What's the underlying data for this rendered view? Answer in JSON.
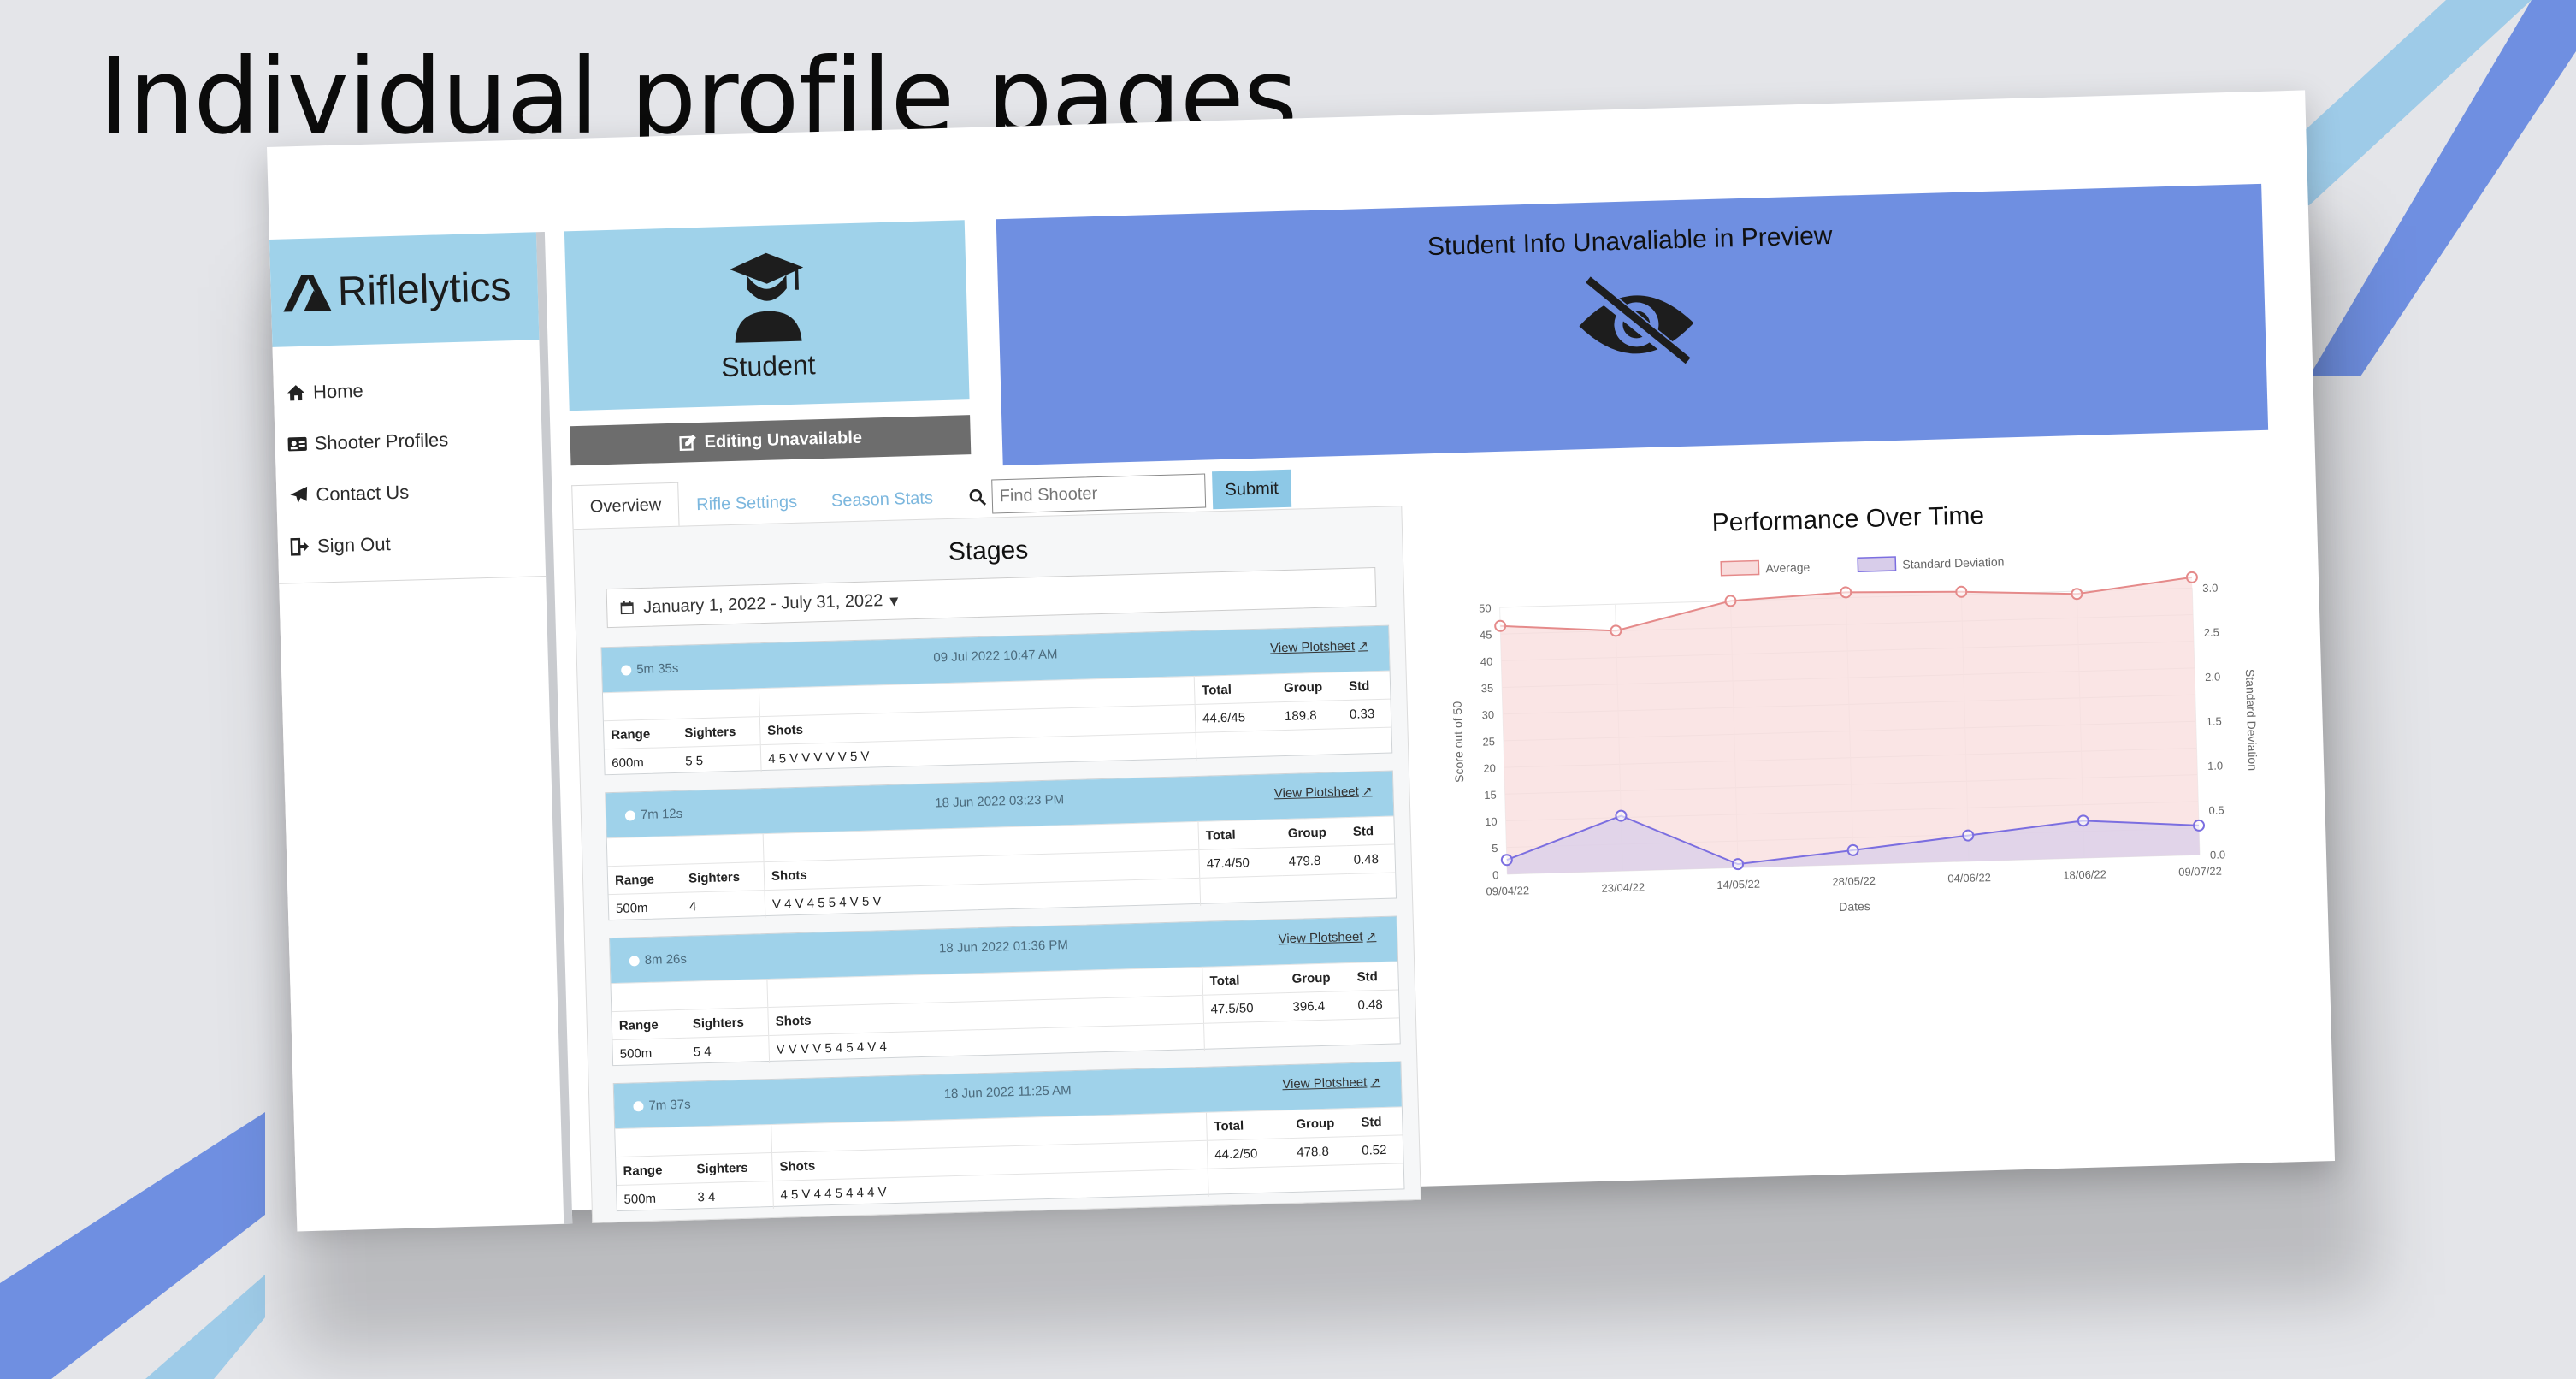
{
  "slide": {
    "title": "Individual profile pages"
  },
  "brand": {
    "name": "Riflelytics"
  },
  "nav": [
    {
      "label": "Home",
      "icon": "home-icon"
    },
    {
      "label": "Shooter Profiles",
      "icon": "id-card-icon"
    },
    {
      "label": "Contact Us",
      "icon": "paper-plane-icon"
    },
    {
      "label": "Sign Out",
      "icon": "sign-out-icon"
    }
  ],
  "student": {
    "label": "Student",
    "edit_label": "Editing Unavailable"
  },
  "info": {
    "title": "Student Info Unavaliable in Preview"
  },
  "tabs": [
    {
      "label": "Overview",
      "active": true
    },
    {
      "label": "Rifle Settings",
      "active": false
    },
    {
      "label": "Season Stats",
      "active": false
    }
  ],
  "search": {
    "placeholder": "Find Shooter",
    "submit_label": "Submit"
  },
  "stages": {
    "title": "Stages",
    "date_range": "January 1, 2022 - July 31, 2022",
    "headers": {
      "range": "Range",
      "sighters": "Sighters",
      "shots": "Shots",
      "total": "Total",
      "group": "Group",
      "std": "Std"
    },
    "link_label": "View Plotsheet",
    "items": [
      {
        "duration": "5m 35s",
        "date": "09 Jul 2022 10:47 AM",
        "range": "600m",
        "sighters": "5 5",
        "shots": "4 5 V V V V V 5 V",
        "total": "44.6/45",
        "group": "189.8",
        "std": "0.33"
      },
      {
        "duration": "7m 12s",
        "date": "18 Jun 2022 03:23 PM",
        "range": "500m",
        "sighters": "4",
        "shots": "V 4 V 4 5 5 4 V 5 V",
        "total": "47.4/50",
        "group": "479.8",
        "std": "0.48"
      },
      {
        "duration": "8m 26s",
        "date": "18 Jun 2022 01:36 PM",
        "range": "500m",
        "sighters": "5 4",
        "shots": "V V V V 5 4 5 4 V 4",
        "total": "47.5/50",
        "group": "396.4",
        "std": "0.48"
      },
      {
        "duration": "7m 37s",
        "date": "18 Jun 2022 11:25 AM",
        "range": "500m",
        "sighters": "3 4",
        "shots": "4 5 V 4 4 5 4 4 4 V",
        "total": "44.2/50",
        "group": "478.8",
        "std": "0.52"
      }
    ]
  },
  "chart_data": {
    "type": "line",
    "title": "Performance Over Time",
    "x": [
      "09/04/22",
      "23/04/22",
      "14/05/22",
      "28/05/22",
      "04/06/22",
      "18/06/22",
      "09/07/22"
    ],
    "xlabel": "Dates",
    "ylabel": "Score out of 50",
    "y2label": "Standard Deviation",
    "ylim": [
      0,
      50
    ],
    "y2lim": [
      0,
      3
    ],
    "yticks": [
      0,
      5,
      10,
      15,
      20,
      25,
      30,
      35,
      40,
      45,
      50
    ],
    "y2ticks": [
      0,
      0.5,
      1.0,
      1.5,
      2.0,
      2.5,
      3.0
    ],
    "series": [
      {
        "name": "Average",
        "axis": "left",
        "values": [
          46.5,
          45.0,
          50.0,
          51.0,
          50.5,
          49.5,
          52.0
        ],
        "color": "#e58a8a",
        "fill": "#f8dcdc"
      },
      {
        "name": "Standard Deviation",
        "axis": "right",
        "values": [
          0.16,
          0.62,
          0.04,
          0.16,
          0.29,
          0.42,
          0.33
        ],
        "color": "#7b6ee0",
        "fill": "#d8cdea"
      }
    ],
    "legend": "top",
    "grid": true
  },
  "colors": {
    "accent_blue": "#9fd2ea",
    "banner": "#6f8fe1",
    "edit_btn": "#6d6d6d"
  }
}
